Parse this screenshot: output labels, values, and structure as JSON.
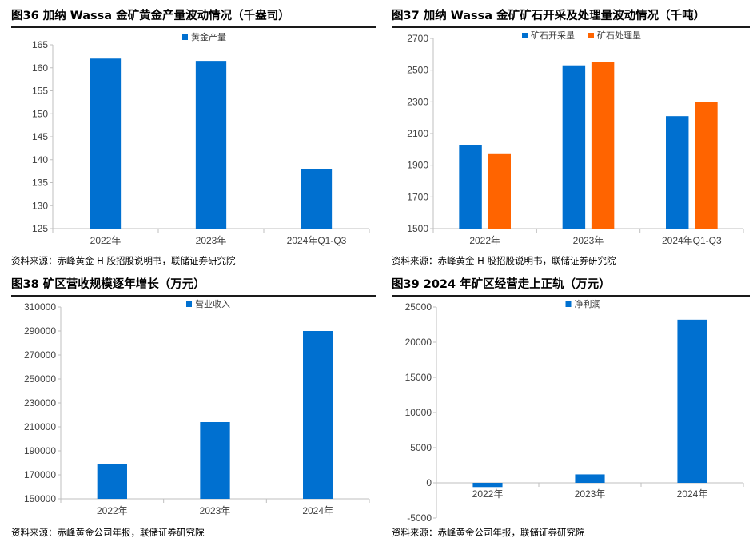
{
  "colors": {
    "blue": "#0070d0",
    "orange": "#ff6400",
    "axis": "#bfbfbf",
    "text": "#404040"
  },
  "chart_data": [
    {
      "id": "c36",
      "title": "图36 加纳 Wassa 金矿黄金产量波动情况（千盎司）",
      "source": "资料来源：赤峰黄金 H 股招股说明书，联储证券研究院",
      "type": "bar",
      "categories": [
        "2022年",
        "2023年",
        "2024年Q1-Q3"
      ],
      "series": [
        {
          "name": "黄金产量",
          "color": "#0070d0",
          "values": [
            162,
            161.5,
            138
          ]
        }
      ],
      "ylim": [
        125,
        165
      ],
      "yticks": [
        125,
        130,
        135,
        140,
        145,
        150,
        155,
        160,
        165
      ],
      "legend": "top-center",
      "grid": false
    },
    {
      "id": "c37",
      "title": "图37 加纳 Wassa 金矿矿石开采及处理量波动情况（千吨）",
      "source": "资料来源：赤峰黄金 H 股招股说明书，联储证券研究院",
      "type": "bar",
      "categories": [
        "2022年",
        "2023年",
        "2024年Q1-Q3"
      ],
      "series": [
        {
          "name": "矿石开采量",
          "color": "#0070d0",
          "values": [
            2025,
            2530,
            2210
          ]
        },
        {
          "name": "矿石处理量",
          "color": "#ff6400",
          "values": [
            1970,
            2550,
            2300
          ]
        }
      ],
      "ylim": [
        1500,
        2700
      ],
      "yticks": [
        1500,
        1700,
        1900,
        2100,
        2300,
        2500,
        2700
      ],
      "legend": "top-center",
      "grid": false
    },
    {
      "id": "c38",
      "title": "图38 矿区营收规模逐年增长（万元）",
      "source": "资料来源：赤峰黄金公司年报，联储证券研究院",
      "type": "bar",
      "categories": [
        "2022年",
        "2023年",
        "2024年"
      ],
      "series": [
        {
          "name": "营业收入",
          "color": "#0070d0",
          "values": [
            179000,
            214000,
            290000
          ]
        }
      ],
      "ylim": [
        150000,
        310000
      ],
      "yticks": [
        150000,
        170000,
        190000,
        210000,
        230000,
        250000,
        270000,
        290000,
        310000
      ],
      "legend": "top-center",
      "grid": false
    },
    {
      "id": "c39",
      "title": "图39 2024 年矿区经营走上正轨（万元）",
      "source": "资料来源：赤峰黄金公司年报，联储证券研究院",
      "type": "bar",
      "categories": [
        "2022年",
        "2023年",
        "2024年"
      ],
      "series": [
        {
          "name": "净利润",
          "color": "#0070d0",
          "values": [
            -600,
            1200,
            23200
          ]
        }
      ],
      "ylim": [
        -5000,
        25000
      ],
      "yticks": [
        -5000,
        0,
        5000,
        10000,
        15000,
        20000,
        25000
      ],
      "legend": "top-center",
      "grid": false
    }
  ]
}
